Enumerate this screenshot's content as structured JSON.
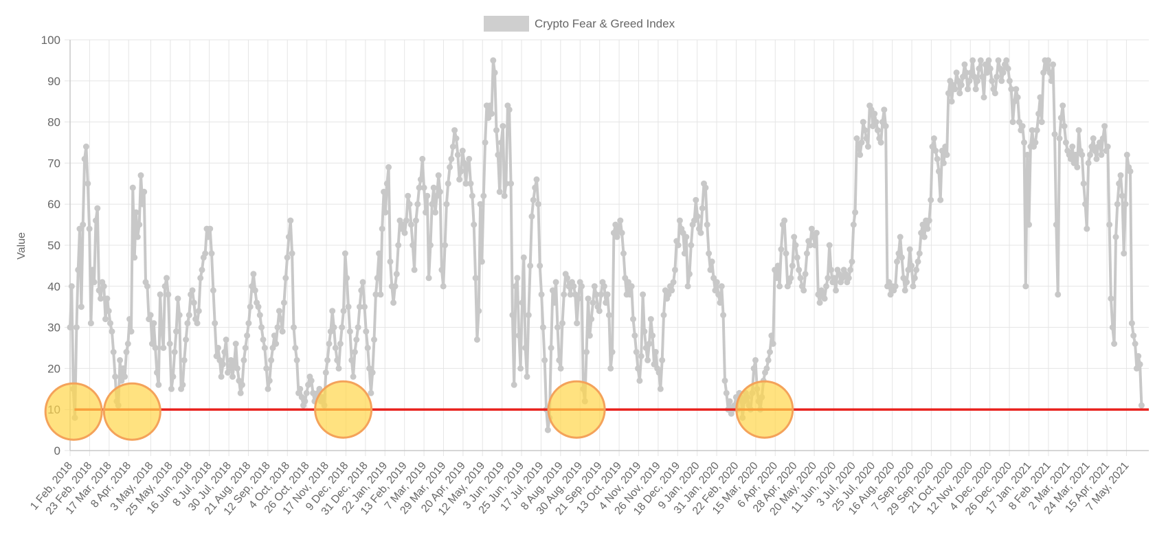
{
  "chart_data": {
    "type": "line",
    "title": "",
    "xlabel": "",
    "ylabel": "Value",
    "ylim": [
      0,
      100
    ],
    "yticks": [
      0,
      10,
      20,
      30,
      40,
      50,
      60,
      70,
      80,
      90,
      100
    ],
    "grid": true,
    "legend_position": "top",
    "x_tick_labels": [
      "1 Feb, 2018",
      "23 Feb, 2018",
      "17 Mar, 2018",
      "8 Apr, 2018",
      "3 May, 2018",
      "25 May, 2018",
      "16 Jun, 2018",
      "8 Jul, 2018",
      "30 Jul, 2018",
      "21 Aug, 2018",
      "12 Sep, 2018",
      "4 Oct, 2018",
      "26 Oct, 2018",
      "17 Nov, 2018",
      "9 Dec, 2018",
      "31 Dec, 2018",
      "22 Jan, 2019",
      "13 Feb, 2019",
      "7 Mar, 2019",
      "29 Mar, 2019",
      "20 Apr, 2019",
      "12 May, 2019",
      "3 Jun, 2019",
      "25 Jun, 2019",
      "17 Jul, 2019",
      "8 Aug, 2019",
      "30 Aug, 2019",
      "21 Sep, 2019",
      "13 Oct, 2019",
      "4 Nov, 2019",
      "26 Nov, 2019",
      "18 Dec, 2019",
      "9 Jan, 2020",
      "31 Jan, 2020",
      "22 Feb, 2020",
      "15 Mar, 2020",
      "6 Apr, 2020",
      "28 Apr, 2020",
      "20 May, 2020",
      "11 Jun, 2020",
      "3 Jul, 2020",
      "25 Jul, 2020",
      "16 Aug, 2020",
      "7 Sep, 2020",
      "29 Sep, 2020",
      "21 Oct, 2020",
      "12 Nov, 2020",
      "4 Dec, 2020",
      "26 Dec, 2020",
      "17 Jan, 2021",
      "8 Feb, 2021",
      "2 Mar, 2021",
      "24 Mar, 2021",
      "15 Apr, 2021",
      "7 May, 2021"
    ],
    "series": [
      {
        "name": "Crypto Fear & Greed Index",
        "color": "#c8c8c8",
        "x_end": "2021-05-24",
        "values": [
          30,
          40,
          15,
          8,
          30,
          44,
          54,
          35,
          55,
          71,
          74,
          65,
          54,
          31,
          44,
          41,
          56,
          59,
          39,
          37,
          41,
          40,
          32,
          37,
          34,
          31,
          29,
          24,
          18,
          12,
          11,
          22,
          17,
          20,
          18,
          24,
          26,
          32,
          29,
          64,
          47,
          58,
          52,
          55,
          67,
          60,
          63,
          41,
          40,
          32,
          33,
          26,
          31,
          25,
          19,
          16,
          38,
          29,
          25,
          40,
          42,
          38,
          26,
          15,
          18,
          24,
          29,
          37,
          33,
          15,
          16,
          22,
          27,
          31,
          33,
          38,
          39,
          36,
          32,
          31,
          34,
          42,
          44,
          47,
          48,
          54,
          52,
          54,
          48,
          39,
          31,
          23,
          25,
          22,
          18,
          21,
          24,
          27,
          19,
          20,
          22,
          18,
          21,
          26,
          20,
          17,
          14,
          16,
          22,
          25,
          28,
          31,
          35,
          40,
          43,
          39,
          36,
          35,
          33,
          30,
          27,
          25,
          20,
          15,
          17,
          22,
          25,
          28,
          26,
          30,
          34,
          32,
          29,
          36,
          42,
          47,
          52,
          56,
          48,
          30,
          25,
          22,
          14,
          15,
          13,
          11,
          12,
          14,
          16,
          18,
          17,
          14,
          12,
          13,
          14,
          15,
          12,
          13,
          11,
          19,
          22,
          26,
          29,
          34,
          30,
          25,
          22,
          20,
          26,
          30,
          34,
          48,
          42,
          35,
          29,
          22,
          18,
          24,
          27,
          30,
          35,
          39,
          41,
          35,
          29,
          25,
          20,
          14,
          19,
          27,
          38,
          42,
          48,
          38,
          54,
          63,
          58,
          65,
          69,
          46,
          40,
          36,
          40,
          43,
          50,
          56,
          54,
          55,
          53,
          56,
          62,
          60,
          55,
          50,
          44,
          56,
          60,
          64,
          66,
          71,
          64,
          58,
          62,
          42,
          50,
          60,
          64,
          58,
          62,
          67,
          63,
          44,
          40,
          50,
          60,
          65,
          69,
          71,
          74,
          78,
          76,
          72,
          66,
          68,
          73,
          70,
          65,
          69,
          71,
          65,
          62,
          55,
          42,
          27,
          34,
          60,
          46,
          62,
          75,
          84,
          81,
          84,
          82,
          95,
          92,
          78,
          72,
          63,
          75,
          79,
          62,
          65,
          84,
          83,
          65,
          33,
          16,
          40,
          42,
          28,
          20,
          36,
          47,
          25,
          18,
          33,
          45,
          57,
          61,
          64,
          66,
          60,
          45,
          38,
          30,
          22,
          10,
          5,
          8,
          25,
          39,
          36,
          41,
          30,
          22,
          20,
          31,
          38,
          43,
          42,
          40,
          38,
          41,
          40,
          38,
          31,
          37,
          41,
          40,
          15,
          12,
          24,
          37,
          28,
          32,
          36,
          40,
          38,
          35,
          34,
          38,
          41,
          40,
          36,
          38,
          33,
          20,
          24,
          53,
          55,
          52,
          54,
          56,
          53,
          48,
          42,
          38,
          41,
          38,
          40,
          32,
          28,
          24,
          20,
          17,
          23,
          38,
          29,
          25,
          22,
          26,
          32,
          28,
          21,
          24,
          20,
          19,
          15,
          22,
          33,
          39,
          37,
          38,
          40,
          39,
          41,
          44,
          51,
          50,
          56,
          54,
          53,
          48,
          52,
          40,
          43,
          50,
          55,
          56,
          61,
          57,
          54,
          53,
          59,
          65,
          64,
          55,
          48,
          44,
          46,
          42,
          39,
          41,
          38,
          36,
          40,
          33,
          17,
          14,
          10,
          12,
          9,
          10,
          11,
          13,
          10,
          14,
          13,
          8,
          12,
          14,
          13,
          11,
          10,
          14,
          20,
          22,
          15,
          12,
          10,
          13,
          17,
          19,
          20,
          22,
          24,
          28,
          26,
          44,
          42,
          45,
          40,
          49,
          55,
          56,
          48,
          40,
          41,
          42,
          45,
          52,
          50,
          47,
          44,
          42,
          40,
          39,
          43,
          48,
          51,
          50,
          54,
          52,
          50,
          53,
          38,
          36,
          39,
          38,
          37,
          40,
          42,
          50,
          44,
          41,
          42,
          39,
          44,
          43,
          41,
          42,
          44,
          43,
          41,
          42,
          44,
          46,
          55,
          58,
          76,
          74,
          72,
          75,
          80,
          78,
          76,
          74,
          84,
          83,
          79,
          82,
          80,
          78,
          76,
          75,
          80,
          83,
          79,
          40,
          41,
          38,
          40,
          39,
          40,
          46,
          48,
          52,
          47,
          42,
          39,
          41,
          44,
          49,
          45,
          40,
          42,
          44,
          46,
          48,
          53,
          55,
          52,
          56,
          54,
          56,
          61,
          74,
          76,
          73,
          71,
          68,
          61,
          73,
          70,
          74,
          72,
          87,
          90,
          85,
          89,
          88,
          92,
          90,
          87,
          89,
          91,
          94,
          92,
          88,
          90,
          92,
          95,
          91,
          88,
          90,
          93,
          95,
          91,
          86,
          94,
          92,
          95,
          93,
          90,
          88,
          87,
          91,
          95,
          93,
          90,
          92,
          94,
          95,
          93,
          90,
          88,
          80,
          85,
          88,
          86,
          80,
          78,
          79,
          75,
          40,
          72,
          55,
          74,
          78,
          74,
          75,
          78,
          82,
          86,
          80,
          92,
          95,
          93,
          95,
          92,
          90,
          94,
          77,
          55,
          38,
          76,
          81,
          84,
          79,
          75,
          73,
          72,
          71,
          74,
          70,
          72,
          69,
          78,
          73,
          72,
          65,
          60,
          54,
          70,
          72,
          74,
          76,
          73,
          71,
          74,
          75,
          72,
          76,
          79,
          73,
          74,
          55,
          37,
          30,
          26,
          52,
          60,
          65,
          67,
          62,
          48,
          60,
          72,
          69,
          68,
          31,
          28,
          26,
          20,
          23,
          21,
          11
        ]
      }
    ],
    "reference_line": {
      "value": 10,
      "color": "#e8231f",
      "x_start": "2018-02-06"
    },
    "highlight_markers": [
      {
        "x": "2018-02-05",
        "y": 9.5
      },
      {
        "x": "2018-04-12",
        "y": 9.5
      },
      {
        "x": "2018-12-06",
        "y": 10
      },
      {
        "x": "2019-08-26",
        "y": 10
      },
      {
        "x": "2020-03-25",
        "y": 10
      }
    ],
    "highlight_color": "#ffd54a",
    "highlight_border_color": "#f4a25a"
  }
}
